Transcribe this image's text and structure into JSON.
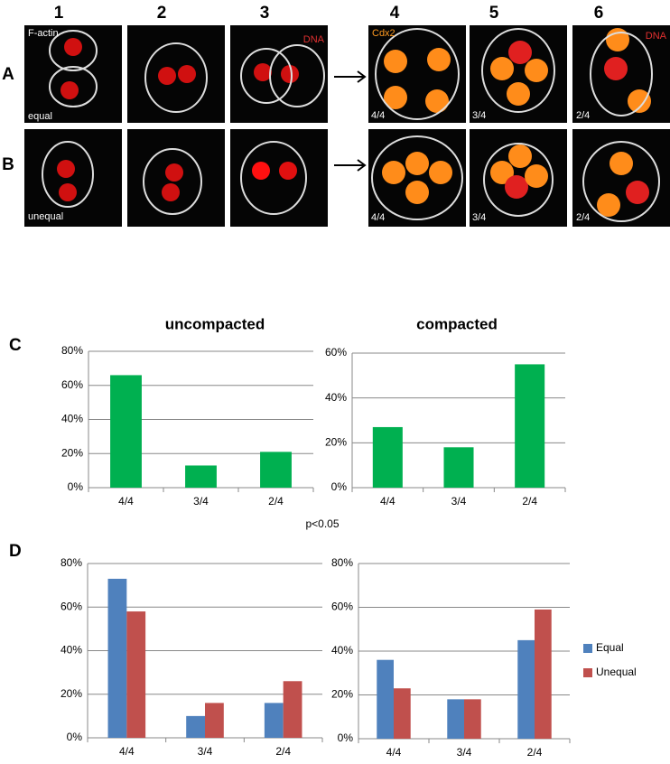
{
  "figure": {
    "column_labels": [
      "1",
      "2",
      "3",
      "4",
      "5",
      "6"
    ],
    "row_labels": [
      "A",
      "B"
    ],
    "row_a_notes": [
      "F-actin",
      "equal",
      "DNA",
      "Cdx2",
      "4/4",
      "3/4",
      "DNA",
      "2/4"
    ],
    "row_b_notes": [
      "unequal",
      "4/4",
      "3/4",
      "2/4"
    ],
    "panel_labels": [
      "C",
      "D"
    ],
    "annotation": "p<0.05"
  },
  "chart_data": [
    {
      "type": "bar",
      "title": "uncompacted",
      "categories": [
        "4/4",
        "3/4",
        "2/4"
      ],
      "values": [
        66,
        13,
        21
      ],
      "color": "#00b050",
      "ylim": [
        0,
        80
      ],
      "yticks": [
        {
          "value": 0,
          "label": "0%"
        },
        {
          "value": 20,
          "label": "20%"
        },
        {
          "value": 40,
          "label": "40%"
        },
        {
          "value": 60,
          "label": "60%"
        },
        {
          "value": 80,
          "label": "80%"
        }
      ],
      "grid": true
    },
    {
      "type": "bar",
      "title": "compacted",
      "categories": [
        "4/4",
        "3/4",
        "2/4"
      ],
      "values": [
        27,
        18,
        55
      ],
      "color": "#00b050",
      "ylim": [
        0,
        60
      ],
      "yticks": [
        {
          "value": 0,
          "label": "0%"
        },
        {
          "value": 20,
          "label": "20%"
        },
        {
          "value": 40,
          "label": "40%"
        },
        {
          "value": 60,
          "label": "60%"
        }
      ],
      "grid": true
    },
    {
      "type": "bar",
      "categories": [
        "4/4",
        "3/4",
        "2/4"
      ],
      "series": [
        {
          "color": "#4f81bd",
          "values": [
            73,
            10,
            16
          ]
        },
        {
          "color": "#c0504d",
          "values": [
            58,
            16,
            26
          ]
        }
      ],
      "ylim": [
        0,
        80
      ],
      "yticks": [
        {
          "value": 0,
          "label": "0%"
        },
        {
          "value": 20,
          "label": "20%"
        },
        {
          "value": 40,
          "label": "40%"
        },
        {
          "value": 60,
          "label": "60%"
        },
        {
          "value": 80,
          "label": "80%"
        }
      ],
      "grid": true
    },
    {
      "type": "bar",
      "categories": [
        "4/4",
        "3/4",
        "2/4"
      ],
      "series": [
        {
          "name": "Equal",
          "color": "#4f81bd",
          "values": [
            36,
            18,
            45
          ]
        },
        {
          "name": "Unequal",
          "color": "#c0504d",
          "values": [
            23,
            18,
            59
          ]
        }
      ],
      "ylim": [
        0,
        80
      ],
      "yticks": [
        {
          "value": 0,
          "label": "0%"
        },
        {
          "value": 20,
          "label": "20%"
        },
        {
          "value": 40,
          "label": "40%"
        },
        {
          "value": 60,
          "label": "60%"
        },
        {
          "value": 80,
          "label": "80%"
        }
      ],
      "grid": true,
      "legend": "right"
    }
  ]
}
